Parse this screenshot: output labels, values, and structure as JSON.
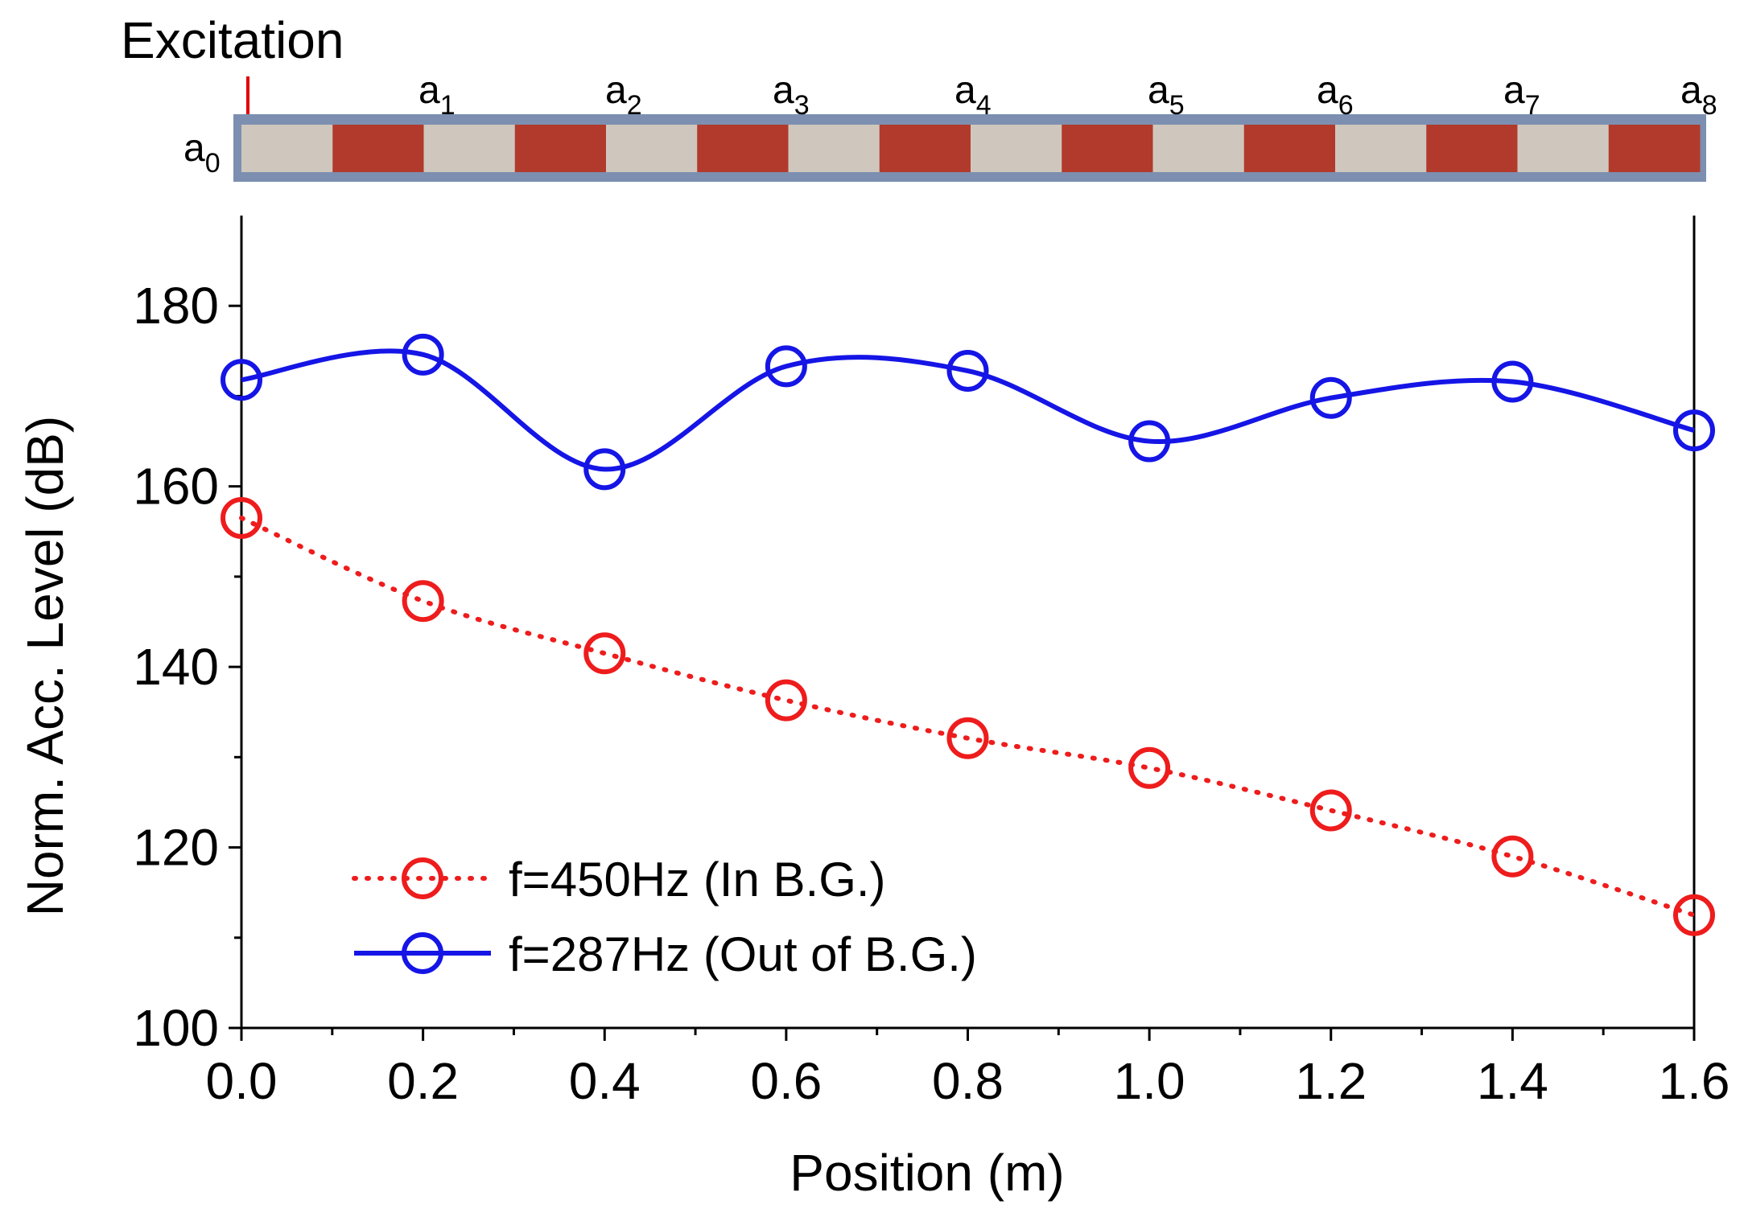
{
  "header": {
    "excitation_label": "Excitation",
    "positions": [
      {
        "base": "a",
        "sub": "0"
      },
      {
        "base": "a",
        "sub": "1"
      },
      {
        "base": "a",
        "sub": "2"
      },
      {
        "base": "a",
        "sub": "3"
      },
      {
        "base": "a",
        "sub": "4"
      },
      {
        "base": "a",
        "sub": "5"
      },
      {
        "base": "a",
        "sub": "6"
      },
      {
        "base": "a",
        "sub": "7"
      },
      {
        "base": "a",
        "sub": "8"
      }
    ]
  },
  "beam": {
    "pattern": [
      "aluminum",
      "rubber",
      "aluminum",
      "rubber",
      "aluminum",
      "rubber",
      "aluminum",
      "rubber",
      "aluminum",
      "rubber",
      "aluminum",
      "rubber",
      "aluminum",
      "rubber",
      "aluminum",
      "rubber"
    ],
    "colors": {
      "aluminum": "#cfc7bd",
      "rubber": "#b23a2c",
      "frame": "#7c8fb0"
    }
  },
  "chart_data": {
    "type": "line",
    "title": "",
    "xlabel": "Position (m)",
    "ylabel": "Norm. Acc. Level (dB)",
    "xlim": [
      0.0,
      1.6
    ],
    "ylim": [
      100,
      190
    ],
    "x_ticks": [
      0.0,
      0.2,
      0.4,
      0.6,
      0.8,
      1.0,
      1.2,
      1.4,
      1.6
    ],
    "x_tick_labels": [
      "0.0",
      "0.2",
      "0.4",
      "0.6",
      "0.8",
      "1.0",
      "1.2",
      "1.4",
      "1.6"
    ],
    "y_ticks": [
      100,
      120,
      140,
      160,
      180
    ],
    "y_tick_labels": [
      "100",
      "120",
      "140",
      "160",
      "180"
    ],
    "grid": false,
    "legend_position": "bottom-left",
    "x": [
      0.0,
      0.2,
      0.4,
      0.6,
      0.8,
      1.0,
      1.2,
      1.4,
      1.6
    ],
    "series": [
      {
        "name": "f=450Hz (In B.G.)",
        "color": "#ee1c1c",
        "line_style": "dotted",
        "marker": "open-circle",
        "values": [
          156.5,
          147.3,
          141.5,
          136.3,
          132.1,
          128.8,
          124.1,
          119.0,
          112.5
        ]
      },
      {
        "name": "f=287Hz (Out of B.G.)",
        "color": "#1515e6",
        "line_style": "solid",
        "marker": "open-circle",
        "values": [
          171.8,
          174.6,
          161.9,
          173.3,
          172.8,
          165.0,
          169.8,
          171.6,
          166.2
        ]
      }
    ]
  }
}
